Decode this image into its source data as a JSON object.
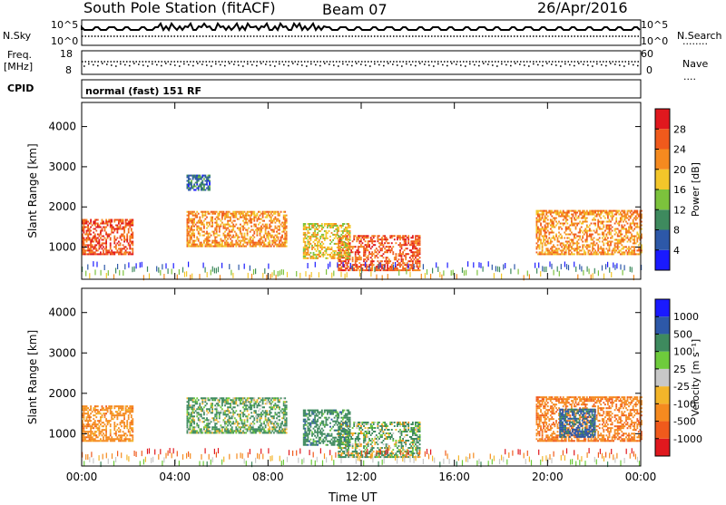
{
  "header": {
    "station": "South Pole Station (fitACF)",
    "beam": "Beam 07",
    "date": "26/Apr/2016",
    "mode": "normal (fast) 151 RF"
  },
  "side_labels": {
    "nsky": "N.Sky",
    "freq_line1": "Freq.",
    "freq_line2": "[MHz]",
    "cpid": "CPID",
    "nsearch": "N.Search",
    "nave": "Nave",
    "dots": "........",
    "dots_short": "...."
  },
  "top_axes": {
    "nsky_top": "10^5",
    "nsky_bottom": "10^0",
    "nsearch_top": "10^5",
    "nsearch_bottom": "10^0",
    "freq_top": "18",
    "freq_bottom": "8",
    "nave_top": "60",
    "nave_bottom": "0"
  },
  "colors": {
    "power_scale": [
      "#1a1aff",
      "#2d58a8",
      "#3e8a5e",
      "#7cc23c",
      "#f3c62a",
      "#f58a1f",
      "#f05a1c",
      "#e0181e"
    ],
    "velocity_scale": [
      "#e0181e",
      "#f05a1c",
      "#f58a1f",
      "#f3b52a",
      "#c8c8c8",
      "#6ecb3c",
      "#3e8a5e",
      "#2d58a8",
      "#1a1aff"
    ]
  },
  "chart_data": [
    {
      "type": "heatmap",
      "title": "Power",
      "xlabel": "Time UT",
      "ylabel": "Slant Range [km]",
      "x_ticks": [
        "00:00",
        "04:00",
        "08:00",
        "12:00",
        "16:00",
        "20:00",
        "00:00"
      ],
      "y_ticks": [
        "1000",
        "2000",
        "3000",
        "4000"
      ],
      "ylim": [
        200,
        4600
      ],
      "colorbar_label": "Power [dB]",
      "colorbar_ticks": [
        "4",
        "8",
        "12",
        "16",
        "20",
        "24",
        "28"
      ],
      "regions": [
        {
          "t0": 0.0,
          "t1": 2.2,
          "r0": 800,
          "r1": 1700,
          "level": 26
        },
        {
          "t0": 4.5,
          "t1": 8.8,
          "r0": 1000,
          "r1": 1900,
          "level": 22
        },
        {
          "t0": 11.0,
          "t1": 14.5,
          "r0": 400,
          "r1": 1300,
          "level": 26
        },
        {
          "t0": 9.5,
          "t1": 11.5,
          "r0": 700,
          "r1": 1600,
          "level": 18
        },
        {
          "t0": 19.5,
          "t1": 24.0,
          "r0": 800,
          "r1": 1900,
          "level": 22
        },
        {
          "t0": 4.5,
          "t1": 5.5,
          "r0": 2400,
          "r1": 2800,
          "level": 8
        }
      ]
    },
    {
      "type": "heatmap",
      "title": "Velocity",
      "xlabel": "Time UT",
      "ylabel": "Slant Range [km]",
      "x_ticks": [
        "00:00",
        "04:00",
        "08:00",
        "12:00",
        "16:00",
        "20:00",
        "00:00"
      ],
      "y_ticks": [
        "1000",
        "2000",
        "3000",
        "4000"
      ],
      "ylim": [
        200,
        4600
      ],
      "colorbar_label": "Velocity [m s⁻¹]",
      "colorbar_ticks": [
        "-1000",
        "-500",
        "-100",
        "-25",
        "25",
        "100",
        "500",
        "1000"
      ],
      "regions": [
        {
          "t0": 0.0,
          "t1": 2.2,
          "r0": 800,
          "r1": 1700,
          "level": -300
        },
        {
          "t0": 4.5,
          "t1": 8.8,
          "r0": 1000,
          "r1": 1900,
          "level": 150
        },
        {
          "t0": 11.0,
          "t1": 14.5,
          "r0": 400,
          "r1": 1300,
          "level": 120
        },
        {
          "t0": 9.5,
          "t1": 11.5,
          "r0": 700,
          "r1": 1600,
          "level": 300
        },
        {
          "t0": 19.5,
          "t1": 24.0,
          "r0": 800,
          "r1": 1900,
          "level": -400
        },
        {
          "t0": 20.5,
          "t1": 22.0,
          "r0": 900,
          "r1": 1600,
          "level": 600
        }
      ]
    }
  ]
}
